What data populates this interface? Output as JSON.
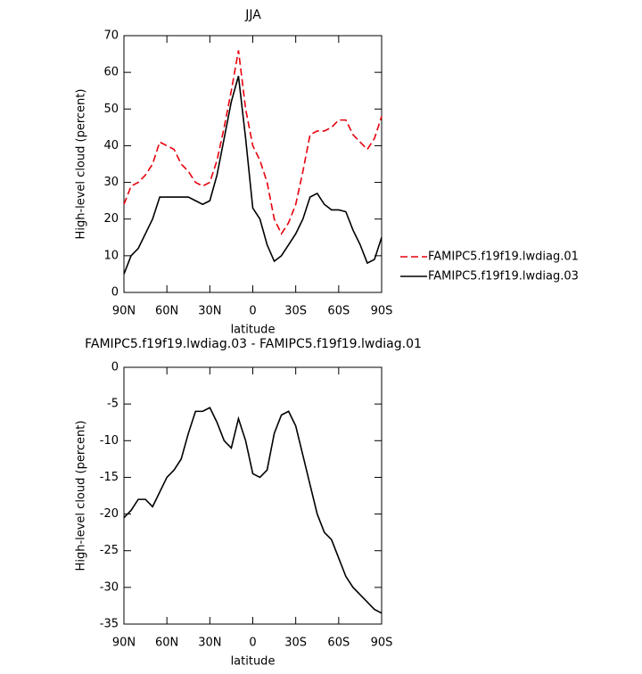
{
  "chart_data": [
    {
      "type": "line",
      "title": "JJA",
      "x_label": "latitude",
      "y_label": "High-level cloud (percent)",
      "x": [
        90,
        85,
        80,
        75,
        70,
        65,
        60,
        55,
        50,
        45,
        40,
        35,
        30,
        25,
        20,
        15,
        10,
        5,
        0,
        -5,
        -10,
        -15,
        -20,
        -25,
        -30,
        -35,
        -40,
        -45,
        -50,
        -55,
        -60,
        -65,
        -70,
        -75,
        -80,
        -85,
        -90
      ],
      "xlim": [
        90,
        -90
      ],
      "xticks": [
        {
          "value": 90,
          "label": "90N"
        },
        {
          "value": 60,
          "label": "60N"
        },
        {
          "value": 30,
          "label": "30N"
        },
        0,
        {
          "value": -30,
          "label": "30S"
        },
        {
          "value": -60,
          "label": "60S"
        },
        {
          "value": -90,
          "label": "90S"
        }
      ],
      "ylim": [
        0,
        70
      ],
      "yticks": [
        0,
        10,
        20,
        30,
        40,
        50,
        60,
        70
      ],
      "series": [
        {
          "name": "FAMIPC5.f19f19.lwdiag.01",
          "color": "#e8000b",
          "dash": true,
          "values": [
            24,
            29,
            30,
            32,
            35,
            41,
            40,
            39,
            35,
            33,
            30,
            29,
            30,
            36,
            45,
            55,
            66,
            50,
            40,
            36,
            30,
            20,
            16,
            19,
            24,
            33,
            43,
            44,
            44,
            45,
            47,
            47,
            43,
            41,
            39,
            42,
            48
          ]
        },
        {
          "name": "FAMIPC5.f19f19.lwdiag.03",
          "color": "#000000",
          "dash": false,
          "values": [
            5,
            10,
            12,
            16,
            20,
            26,
            26,
            26,
            26,
            26,
            25,
            24,
            25,
            32,
            42,
            52,
            59,
            42,
            23,
            20,
            13,
            8.5,
            10,
            13,
            16,
            20,
            26,
            27,
            24,
            22.5,
            22.5,
            22,
            17,
            13,
            8,
            9,
            15
          ]
        }
      ]
    },
    {
      "type": "line",
      "title": "FAMIPC5.f19f19.lwdiag.03 - FAMIPC5.f19f19.lwdiag.01",
      "x_label": "latitude",
      "y_label": "High-level cloud (percent)",
      "x": [
        90,
        85,
        80,
        75,
        70,
        65,
        60,
        55,
        50,
        45,
        40,
        35,
        30,
        25,
        20,
        15,
        10,
        5,
        0,
        -5,
        -10,
        -15,
        -20,
        -25,
        -30,
        -35,
        -40,
        -45,
        -50,
        -55,
        -60,
        -65,
        -70,
        -75,
        -80,
        -85,
        -90
      ],
      "xlim": [
        90,
        -90
      ],
      "xticks": [
        {
          "value": 90,
          "label": "90N"
        },
        {
          "value": 60,
          "label": "60N"
        },
        {
          "value": 30,
          "label": "30N"
        },
        0,
        {
          "value": -30,
          "label": "30S"
        },
        {
          "value": -60,
          "label": "60S"
        },
        {
          "value": -90,
          "label": "90S"
        }
      ],
      "ylim": [
        -35,
        0
      ],
      "yticks": [
        -35,
        -30,
        -25,
        -20,
        -15,
        -10,
        -5,
        0
      ],
      "series": [
        {
          "color": "#000000",
          "dash": false,
          "values": [
            -20.5,
            -19.5,
            -18,
            -18,
            -19,
            -17,
            -15,
            -14,
            -12.5,
            -9,
            -6,
            -6,
            -5.5,
            -7.5,
            -10,
            -11,
            -7,
            -10,
            -14.5,
            -15,
            -14,
            -9,
            -6.5,
            -6,
            -8,
            -12,
            -16,
            -20,
            -22.5,
            -23.5,
            -26,
            -28.5,
            -30,
            -31,
            -32,
            -33,
            -33.5
          ]
        }
      ]
    }
  ]
}
